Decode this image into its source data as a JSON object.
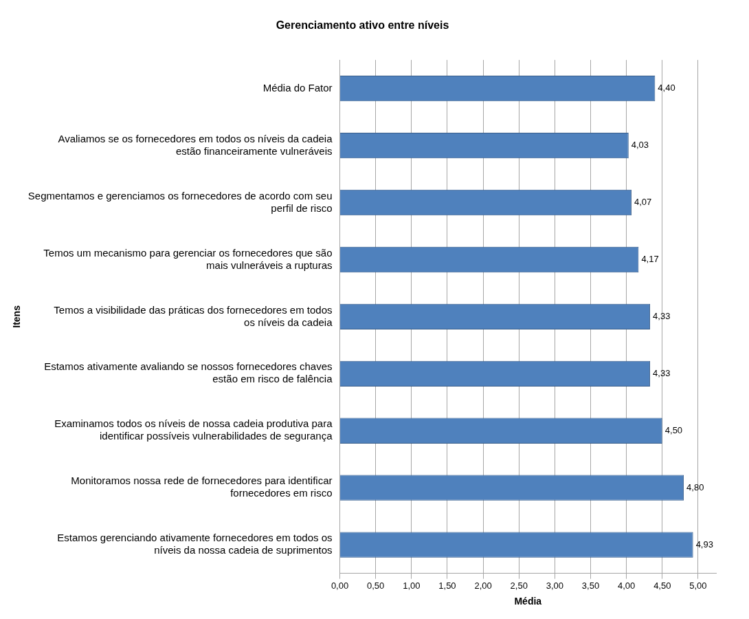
{
  "chart_data": {
    "type": "bar",
    "orientation": "horizontal",
    "title": "Gerenciamento ativo entre níveis",
    "xlabel": "Média",
    "ylabel": "Itens",
    "categories": [
      "Média do Fator",
      "Avaliamos se os fornecedores em todos os níveis da cadeia estão financeiramente vulneráveis",
      "Segmentamos e gerenciamos os fornecedores de acordo com seu perfil de risco",
      "Temos um mecanismo para gerenciar os fornecedores que são mais vulneráveis a rupturas",
      "Temos a visibilidade das práticas dos fornecedores em todos os níveis da cadeia",
      "Estamos ativamente avaliando se nossos fornecedores chaves estão em risco de falência",
      "Examinamos todos os níveis de nossa cadeia produtiva para identificar possíveis vulnerabilidades de segurança",
      "Monitoramos nossa rede de fornecedores para identificar fornecedores em risco",
      "Estamos gerenciando ativamente fornecedores em todos os níveis da nossa cadeia de suprimentos"
    ],
    "values": [
      4.4,
      4.03,
      4.07,
      4.17,
      4.33,
      4.33,
      4.5,
      4.8,
      4.93
    ],
    "value_labels": [
      "4,40",
      "4,03",
      "4,07",
      "4,17",
      "4,33",
      "4,33",
      "4,50",
      "4,80",
      "4,93"
    ],
    "color": "#4f81bd",
    "xlim": [
      0,
      5.25
    ],
    "xticks": [
      {
        "value": 0,
        "label": "0,00"
      },
      {
        "value": 0.5,
        "label": "0,50"
      },
      {
        "value": 1,
        "label": "1,00"
      },
      {
        "value": 1.5,
        "label": "1,50"
      },
      {
        "value": 2,
        "label": "2,00"
      },
      {
        "value": 2.5,
        "label": "2,50"
      },
      {
        "value": 3,
        "label": "3,00"
      },
      {
        "value": 3.5,
        "label": "3,50"
      },
      {
        "value": 4,
        "label": "4,00"
      },
      {
        "value": 4.5,
        "label": "4,50"
      },
      {
        "value": 5,
        "label": "5,00"
      }
    ],
    "grid": "x",
    "legend": false
  }
}
